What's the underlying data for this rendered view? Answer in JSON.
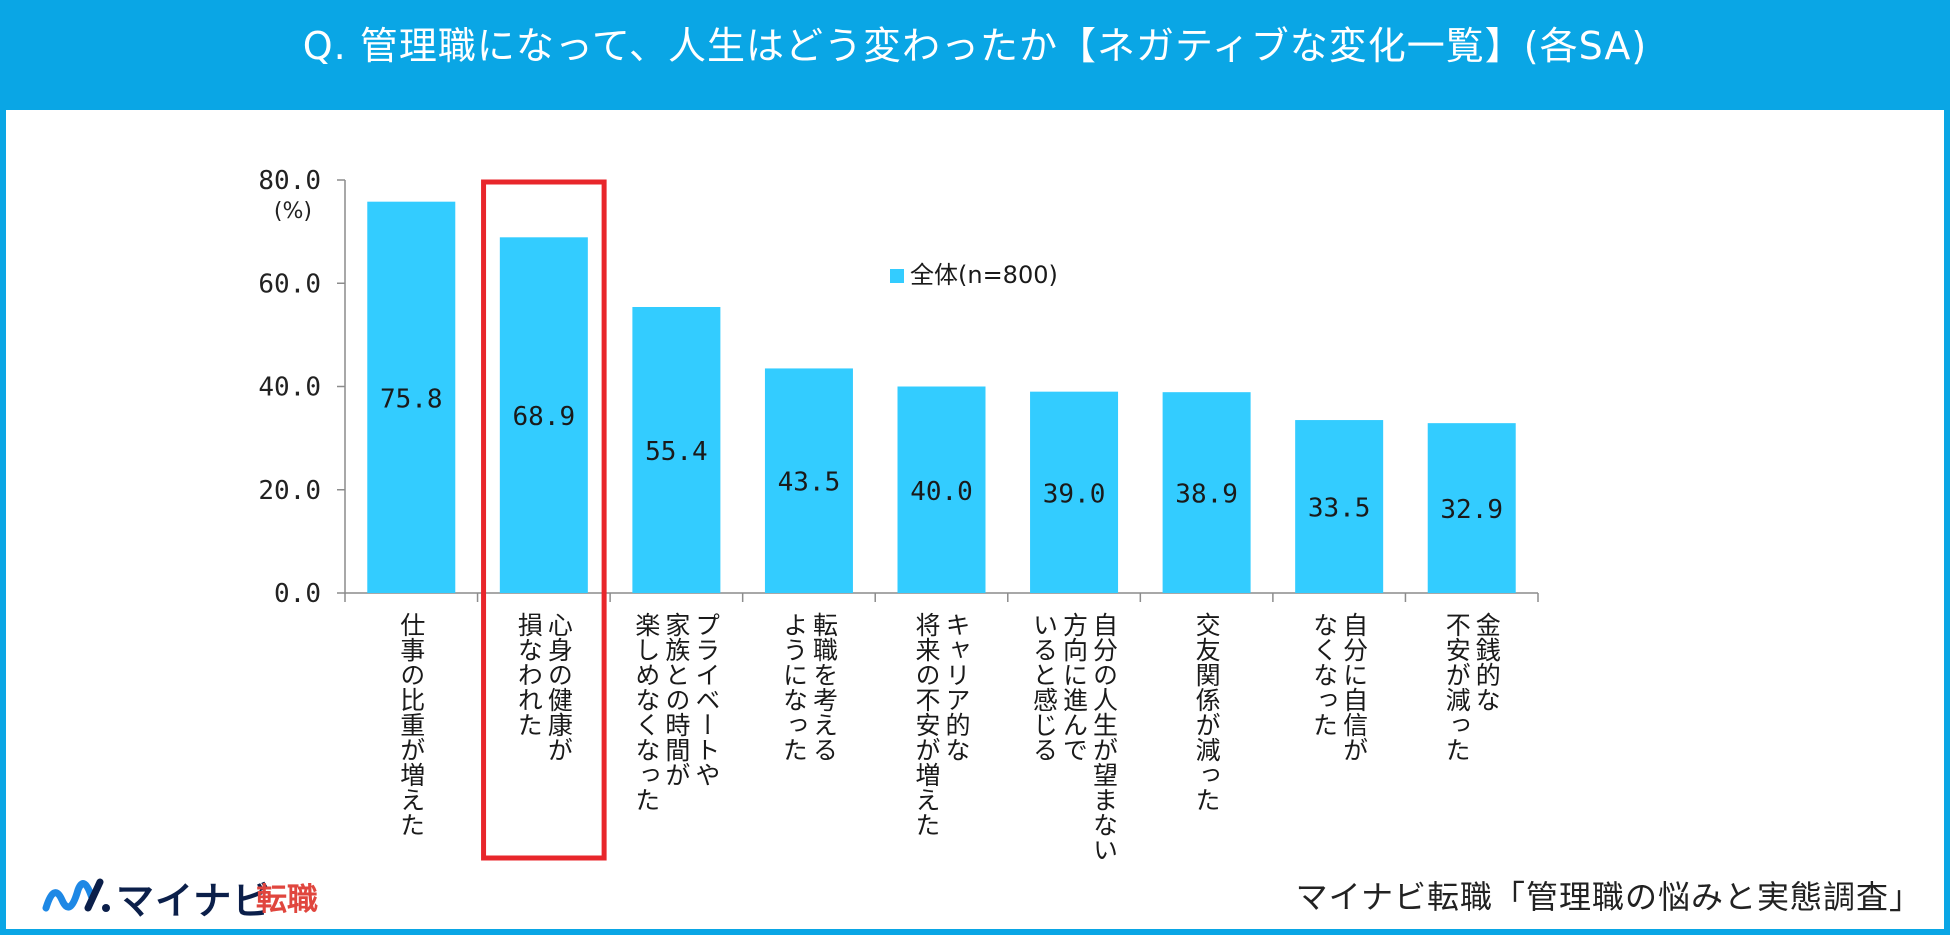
{
  "header": {
    "title": "Q. 管理職になって、人生はどう変わったか【ネガティブな変化一覧】(各SA)"
  },
  "chart_data": {
    "type": "bar",
    "title": "",
    "unit_label": "(%)",
    "ylim": [
      0,
      80
    ],
    "yticks": [
      "0.0",
      "20.0",
      "40.0",
      "60.0",
      "80.0"
    ],
    "legend": {
      "label": "全体(n=800)",
      "color": "#33ccff",
      "position": "top-center"
    },
    "bar_color": "#33ccff",
    "highlight_index": 1,
    "highlight_color": "#e8262b",
    "categories": [
      [
        "仕事の比重が増えた"
      ],
      [
        "心身の健康が",
        "損なわれた"
      ],
      [
        "プライベートや",
        "家族との時間が",
        "楽しめなくなった"
      ],
      [
        "転職を考える",
        "ようになった"
      ],
      [
        "キャリア的な",
        "将来の不安が増えた"
      ],
      [
        "自分の人生が望まない",
        "方向に進んで",
        "いると感じる"
      ],
      [
        "交友関係が減った"
      ],
      [
        "自分に自信が",
        "なくなった"
      ],
      [
        "金銭的な",
        "不安が減った"
      ]
    ],
    "values": [
      75.8,
      68.9,
      55.4,
      43.5,
      40.0,
      39.0,
      38.9,
      33.5,
      32.9
    ],
    "value_labels": [
      "75.8",
      "68.9",
      "55.4",
      "43.5",
      "40.0",
      "39.0",
      "38.9",
      "33.5",
      "32.9"
    ]
  },
  "footer": {
    "logo_main": "マイナビ",
    "logo_sub": "転職",
    "source": "マイナビ転職「管理職の悩みと実態調査」"
  },
  "colors": {
    "brand_blue": "#0aa6e5",
    "bar": "#33ccff",
    "highlight": "#e8262b"
  }
}
